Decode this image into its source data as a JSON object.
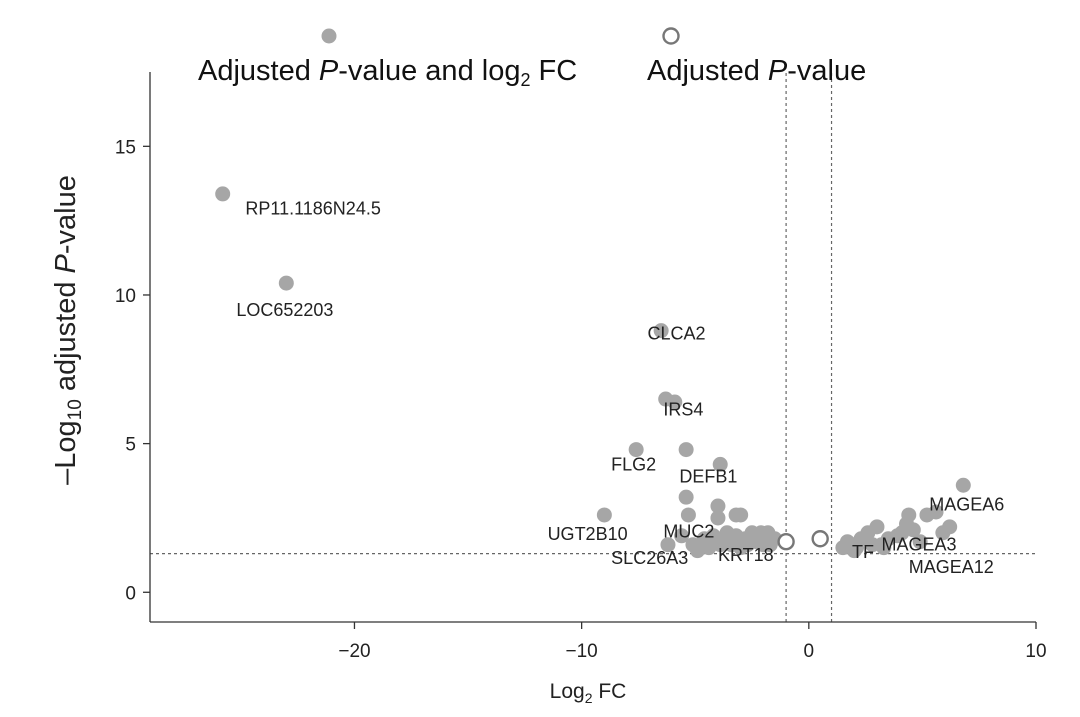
{
  "chart_data": {
    "type": "scatter",
    "title": "",
    "xlabel": {
      "base": "Log",
      "sub": "2",
      "rest": " FC"
    },
    "ylabel": {
      "prefix": "–Log",
      "sub": "10",
      "middle": " adjusted ",
      "italic": "P",
      "suffix": "-value"
    },
    "xlim": [
      -29,
      10
    ],
    "ylim": [
      -1,
      17.5
    ],
    "xticks": [
      -20,
      -10,
      0,
      10
    ],
    "yticks": [
      0,
      5,
      10,
      15
    ],
    "thresholds": {
      "y": 1.3,
      "x": [
        -1,
        1
      ]
    },
    "colors": {
      "filled": "#a6a6a6",
      "open_stroke": "#777777"
    },
    "legend": {
      "position": "top",
      "entries": [
        {
          "marker": "filled",
          "parts": [
            {
              "t": "Adjusted "
            },
            {
              "t": "P",
              "italic": true
            },
            {
              "t": "-value and log"
            },
            {
              "t": "2",
              "sub": true
            },
            {
              "t": " FC"
            }
          ]
        },
        {
          "marker": "open",
          "parts": [
            {
              "t": "Adjusted "
            },
            {
              "t": "P",
              "italic": true
            },
            {
              "t": "-value"
            }
          ]
        }
      ]
    },
    "series": [
      {
        "name": "Adjusted P-value and log2 FC",
        "marker": "filled",
        "points": [
          [
            -25.8,
            13.4
          ],
          [
            -23,
            10.4
          ],
          [
            -6.5,
            8.8
          ],
          [
            -6.3,
            6.5
          ],
          [
            -5.9,
            6.4
          ],
          [
            -7.6,
            4.8
          ],
          [
            -5.4,
            4.8
          ],
          [
            -3.9,
            4.3
          ],
          [
            -5.4,
            3.2
          ],
          [
            -4.0,
            2.9
          ],
          [
            -5.3,
            2.6
          ],
          [
            -9.0,
            2.6
          ],
          [
            -4.0,
            2.5
          ],
          [
            -3.2,
            2.6
          ],
          [
            -3.0,
            2.6
          ],
          [
            -6.2,
            1.6
          ],
          [
            -5.6,
            1.9
          ],
          [
            -5.1,
            1.6
          ],
          [
            -4.9,
            1.4
          ],
          [
            -4.6,
            1.8
          ],
          [
            -4.4,
            1.5
          ],
          [
            -4.2,
            1.9
          ],
          [
            -3.9,
            1.6
          ],
          [
            -3.7,
            1.8
          ],
          [
            -3.6,
            2.0
          ],
          [
            -3.4,
            1.6
          ],
          [
            -3.2,
            1.9
          ],
          [
            -3.0,
            1.5
          ],
          [
            -2.8,
            1.8
          ],
          [
            -2.7,
            1.6
          ],
          [
            -2.5,
            2.0
          ],
          [
            -2.3,
            1.7
          ],
          [
            -2.2,
            1.9
          ],
          [
            -2.1,
            2.0
          ],
          [
            -2.0,
            1.6
          ],
          [
            -1.9,
            1.8
          ],
          [
            -1.8,
            2.0
          ],
          [
            -1.7,
            1.6
          ],
          [
            -1.5,
            1.8
          ],
          [
            1.5,
            1.5
          ],
          [
            1.7,
            1.7
          ],
          [
            1.9,
            1.6
          ],
          [
            2.1,
            1.5
          ],
          [
            2.3,
            1.8
          ],
          [
            2.6,
            2.0
          ],
          [
            2.8,
            1.6
          ],
          [
            3.0,
            2.2
          ],
          [
            3.2,
            1.6
          ],
          [
            3.5,
            1.8
          ],
          [
            3.9,
            1.9
          ],
          [
            4.1,
            2.0
          ],
          [
            4.3,
            2.3
          ],
          [
            4.4,
            2.6
          ],
          [
            4.6,
            2.1
          ],
          [
            4.9,
            1.7
          ],
          [
            5.2,
            2.6
          ],
          [
            5.6,
            2.7
          ],
          [
            5.9,
            2.0
          ],
          [
            6.2,
            2.2
          ],
          [
            6.8,
            3.6
          ],
          [
            3.3,
            1.5
          ],
          [
            2.0,
            1.4
          ]
        ]
      },
      {
        "name": "Adjusted P-value",
        "marker": "open",
        "points": [
          [
            -1.0,
            1.7
          ],
          [
            0.5,
            1.8
          ]
        ]
      }
    ],
    "annotations": [
      {
        "text": "RP11.1186N24.5",
        "x": -24.8,
        "y": 12.7
      },
      {
        "text": "LOC652203",
        "x": -25.2,
        "y": 9.3
      },
      {
        "text": "CLCA2",
        "x": -7.1,
        "y": 8.5
      },
      {
        "text": "IRS4",
        "x": -6.4,
        "y": 5.95
      },
      {
        "text": "FLG2",
        "x": -8.7,
        "y": 4.1
      },
      {
        "text": "DEFB1",
        "x": -5.7,
        "y": 3.7
      },
      {
        "text": "MAGEA6",
        "x": 5.3,
        "y": 2.75
      },
      {
        "text": "UGT2B10",
        "x": -11.5,
        "y": 1.75
      },
      {
        "text": "MUC2",
        "x": -6.4,
        "y": 1.85
      },
      {
        "text": "MAGEA3",
        "x": 3.2,
        "y": 1.4
      },
      {
        "text": "TF",
        "x": 1.9,
        "y": 1.15
      },
      {
        "text": "SLC26A3",
        "x": -8.7,
        "y": 0.95
      },
      {
        "text": "KRT18",
        "x": -4.0,
        "y": 1.05
      },
      {
        "text": "MAGEA12",
        "x": 4.4,
        "y": 0.65
      }
    ]
  }
}
